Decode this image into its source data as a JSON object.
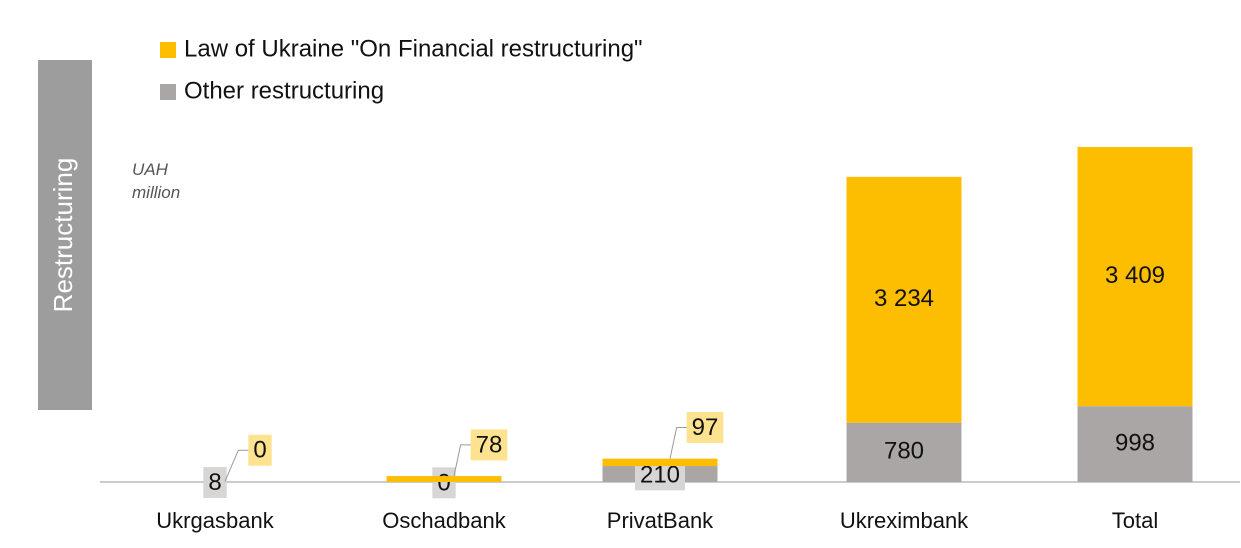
{
  "chart_data": {
    "type": "stacked_bar",
    "side_label": "Restructuring",
    "unit_label": "UAH million",
    "categories": [
      "Ukrgasbank",
      "Oschadbank",
      "PrivatBank",
      "Ukreximbank",
      "Total"
    ],
    "series": [
      {
        "name": "Other restructuring",
        "color": "#aaa6a5",
        "values": [
          8,
          0,
          210,
          780,
          998
        ]
      },
      {
        "name": "Law of Ukraine \"On Financial restructuring\"",
        "color": "#fdbd00",
        "values": [
          0,
          78,
          97,
          3234,
          3409
        ],
        "value_labels": [
          "0",
          "78",
          "97",
          "3 234",
          "3 409"
        ]
      }
    ],
    "legend_order": [
      1,
      0
    ]
  }
}
